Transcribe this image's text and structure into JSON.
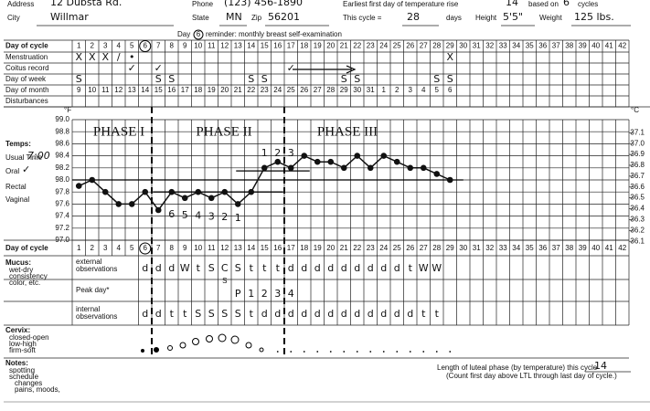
{
  "header": {
    "address_label": "Address",
    "address": "12 Dubsta Rd.",
    "phone_label": "Phone",
    "phone": "(123) 456-1890",
    "earliest_label": "Earliest first day of temperature rise",
    "earliest": "14",
    "based_on": "based on",
    "based_cycles": "6",
    "cycles_label": "cycles",
    "city_label": "City",
    "city": "Willmar",
    "state_label": "State",
    "state": "MN",
    "zip_label": "Zip",
    "zip": "56201",
    "cycle_label": "This cycle =",
    "cycle_days": "28",
    "days_label": "days",
    "height_label": "Height",
    "height": "5'5\"",
    "weight_label": "Weight",
    "weight": "125 lbs."
  },
  "reminder": {
    "prefix": "Day",
    "day": "6",
    "text": "reminder: monthly breast self-examination"
  },
  "labels": {
    "day_of_cycle": "Day of cycle",
    "menstruation": "Menstruation",
    "coitus": "Coitus record",
    "day_of_week": "Day of week",
    "day_of_month": "Day of month",
    "disturbances": "Disturbances",
    "temps": "Temps:",
    "usual_time": "Usual Time",
    "time": "7:00",
    "oral": "Oral",
    "oral_check": "✓",
    "rectal": "Rectal",
    "vaginal": "Vaginal",
    "fahrenheit": "°F",
    "celsius": "°C",
    "mucus": "Mucus:",
    "wet_dry": "wet-dry",
    "consistency": "consistency",
    "color": "color, etc.",
    "external": "external",
    "observations": "observations",
    "peak_day": "Peak day*",
    "internal": "internal",
    "observations2": "observations",
    "cervix": "Cervix:",
    "closed_open": "closed-open",
    "low_high": "low-high",
    "firm_soft": "firm-soft",
    "notes": "Notes:",
    "spotting": "spotting",
    "schedule": "schedule",
    "changes": "changes",
    "pains": "pains, moods,"
  },
  "rows": {
    "days": [
      1,
      2,
      3,
      4,
      5,
      6,
      7,
      8,
      9,
      10,
      11,
      12,
      13,
      14,
      15,
      16,
      17,
      18,
      19,
      20,
      21,
      22,
      23,
      24,
      25,
      26,
      27,
      28,
      29,
      30,
      31,
      32,
      33,
      34,
      35,
      36,
      37,
      38,
      39,
      40,
      41,
      42
    ],
    "menstruation": [
      "X",
      "X",
      "X",
      "/",
      "•",
      null,
      null,
      null,
      null,
      null,
      null,
      null,
      null,
      null,
      null,
      null,
      null,
      null,
      null,
      null,
      null,
      null,
      null,
      null,
      null,
      null,
      null,
      null,
      "X"
    ],
    "coitus": [
      null,
      null,
      null,
      null,
      "✓",
      null,
      "✓",
      null,
      null,
      null,
      null,
      null,
      null,
      null,
      null,
      null,
      "✓"
    ],
    "day_of_week": [
      "S",
      null,
      null,
      null,
      null,
      null,
      "S",
      "S",
      null,
      null,
      null,
      null,
      null,
      "S",
      "S",
      null,
      null,
      null,
      null,
      null,
      "S",
      "S",
      null,
      null,
      null,
      null,
      null,
      "S",
      "S"
    ],
    "day_of_month": [
      9,
      10,
      11,
      12,
      13,
      14,
      15,
      16,
      17,
      18,
      19,
      20,
      21,
      22,
      23,
      24,
      25,
      26,
      27,
      28,
      29,
      30,
      31,
      1,
      2,
      3,
      4,
      5,
      6
    ],
    "mucus_external": [
      null,
      null,
      null,
      null,
      null,
      "d",
      "d",
      "d",
      "W",
      "t",
      "S",
      "C",
      "S",
      "t",
      "t",
      "t",
      "d",
      "d",
      "d",
      "d",
      "d",
      "d",
      "d",
      "d",
      "d",
      "t",
      "W",
      "W"
    ],
    "mucus_external_sub": [
      null,
      null,
      null,
      null,
      null,
      null,
      null,
      null,
      null,
      null,
      null,
      "S"
    ],
    "peak_day": [
      null,
      null,
      null,
      null,
      null,
      null,
      null,
      null,
      null,
      null,
      null,
      null,
      "P",
      "1",
      "2",
      "3",
      "4"
    ],
    "mucus_internal": [
      null,
      null,
      null,
      null,
      null,
      "d",
      "d",
      "t",
      "t",
      "S",
      "S",
      "S",
      "S",
      "t",
      "d",
      "d",
      "d",
      "d",
      "d",
      "d",
      "d",
      "d",
      "d",
      "d",
      "d",
      "d",
      "t",
      "t"
    ]
  },
  "chart_data": {
    "type": "line",
    "phases": [
      "PHASE I",
      "PHASE II",
      "PHASE III"
    ],
    "count_up": [
      null,
      null,
      null,
      null,
      null,
      null,
      null,
      null,
      null,
      null,
      null,
      null,
      null,
      null,
      "1",
      "2",
      "3"
    ],
    "count_down": [
      null,
      null,
      null,
      null,
      null,
      null,
      null,
      "6",
      "5",
      "4",
      "3",
      "2",
      "1"
    ],
    "x": [
      1,
      2,
      3,
      4,
      5,
      6,
      7,
      8,
      9,
      10,
      11,
      12,
      13,
      14,
      15,
      16,
      17,
      18,
      19,
      20,
      21,
      22,
      23,
      24,
      25,
      26,
      27,
      28,
      29
    ],
    "series": [
      {
        "name": "Temperature",
        "color": "#111111",
        "values": [
          97.9,
          98.0,
          97.8,
          97.6,
          97.6,
          97.8,
          97.5,
          97.8,
          97.7,
          97.8,
          97.7,
          97.8,
          97.6,
          97.8,
          98.2,
          98.3,
          98.2,
          98.4,
          98.3,
          98.3,
          98.2,
          98.4,
          98.2,
          98.4,
          98.3,
          98.2,
          98.2,
          98.1,
          98.0
        ]
      }
    ],
    "reference_lines": [
      98.0,
      97.8,
      98.15
    ],
    "ylim": [
      97.0,
      99.0
    ],
    "yticks": [
      {
        "value": 97.0,
        "label": "97.0"
      },
      97.2,
      97.4,
      97.6,
      97.8,
      {
        "value": 98.0,
        "label": "98.0"
      },
      98.2,
      98.4,
      98.6,
      98.8,
      {
        "value": 99.0,
        "label": "99.0"
      }
    ],
    "y2lim": [
      36.11,
      37.22
    ],
    "y2ticks": [
      36.1,
      36.2,
      36.3,
      36.4,
      36.5,
      36.6,
      36.7,
      36.8,
      36.9,
      {
        "value": 37.0,
        "label": "37.0"
      },
      37.1
    ],
    "grid": true
  },
  "footer": {
    "luteal_label": "Length of luteal phase (by temperature) this cycle",
    "luteal": "14",
    "luteal_note": "(Count first day above LTL through last day of cycle.)"
  }
}
